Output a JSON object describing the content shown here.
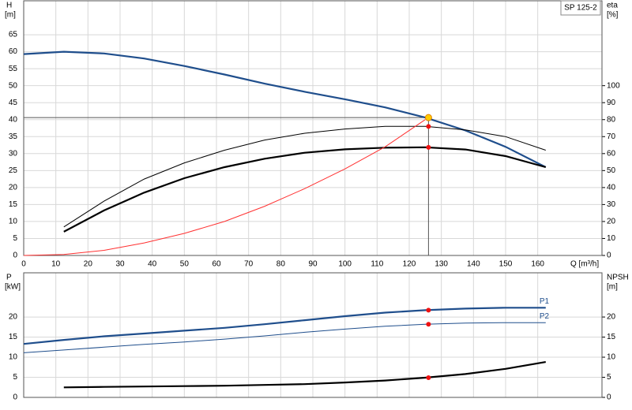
{
  "chart_data": [
    {
      "type": "line",
      "title": "SP 125-2",
      "x": [
        0,
        12.5,
        25,
        37.5,
        50,
        62.5,
        75,
        87.5,
        100,
        112.5,
        125,
        137.5,
        150,
        162.5
      ],
      "xlim": [
        0,
        180
      ],
      "xticks": [
        0,
        10,
        20,
        30,
        40,
        50,
        60,
        70,
        80,
        90,
        100,
        110,
        120,
        130,
        140,
        150,
        160
      ],
      "xlabel": "Q [m³/h]",
      "show_xtick_labels": true,
      "ylabel": "H",
      "yunit": "[m]",
      "ylim": [
        0,
        75
      ],
      "yticks": [
        0,
        5,
        10,
        15,
        20,
        25,
        30,
        35,
        40,
        45,
        50,
        55,
        60,
        65
      ],
      "y2label": "eta",
      "y2unit": "[%]",
      "y2lim": [
        0,
        150
      ],
      "y2ticks": [
        0,
        10,
        20,
        30,
        40,
        50,
        60,
        70,
        80,
        90,
        100
      ],
      "grid": true,
      "crosshair": true,
      "series": [
        {
          "color": "#1f4e8c",
          "line_style": "thick",
          "values": [
            59.3,
            60,
            59.5,
            58,
            55.8,
            53.3,
            50.6,
            48.2,
            46,
            43.6,
            40.6,
            36.8,
            32,
            26
          ]
        },
        {
          "color": "#000000",
          "line_style": "thin",
          "axis": "y2",
          "values": [
            null,
            16.8,
            32,
            45,
            54.5,
            62,
            68,
            72,
            74.5,
            76,
            76,
            74,
            70,
            62
          ]
        },
        {
          "color": "#000000",
          "line_style": "thick",
          "axis": "y2",
          "values": [
            null,
            14,
            26.5,
            37,
            45.5,
            52,
            57,
            60.5,
            62.5,
            63.5,
            63.7,
            62.4,
            58.5,
            52
          ]
        },
        {
          "color": "#ff3030",
          "line_style": "thin",
          "values": [
            0,
            0.3,
            1.5,
            3.7,
            6.5,
            10,
            14.5,
            19.7,
            25.5,
            32,
            40,
            null,
            null,
            null
          ]
        }
      ],
      "points": [
        {
          "x": 126,
          "y": 40.6,
          "color": "#ffcc00"
        },
        {
          "x": 126,
          "y": 76,
          "axis": "y2",
          "color": "#ee1111"
        },
        {
          "x": 126,
          "y": 63.7,
          "axis": "y2",
          "color": "#ee1111"
        }
      ]
    },
    {
      "type": "line",
      "x": [
        0,
        12.5,
        25,
        37.5,
        50,
        62.5,
        75,
        87.5,
        100,
        112.5,
        125,
        137.5,
        150,
        162.5
      ],
      "xlim": [
        0,
        180
      ],
      "xticks": [
        0,
        10,
        20,
        30,
        40,
        50,
        60,
        70,
        80,
        90,
        100,
        110,
        120,
        130,
        140,
        150,
        160
      ],
      "show_xtick_labels": false,
      "ylabel": "P",
      "yunit": "[kW]",
      "ylim": [
        0,
        31
      ],
      "yticks": [
        0,
        5,
        10,
        15,
        20
      ],
      "y2label": "NPSH",
      "y2unit": "[m]",
      "y2lim": [
        0,
        31
      ],
      "y2ticks": [
        0,
        5,
        10,
        15,
        20
      ],
      "grid": true,
      "crosshair": false,
      "series": [
        {
          "name": "P1",
          "color": "#1f4e8c",
          "line_style": "thick",
          "values": [
            13.3,
            14.3,
            15.2,
            15.9,
            16.6,
            17.3,
            18.2,
            19.2,
            20.2,
            21.1,
            21.7,
            22.1,
            22.3,
            22.3
          ]
        },
        {
          "name": "P2",
          "color": "#1f4e8c",
          "line_style": "thin",
          "values": [
            11.1,
            11.8,
            12.5,
            13.2,
            13.8,
            14.5,
            15.3,
            16.2,
            17,
            17.7,
            18.2,
            18.5,
            18.6,
            18.6
          ]
        },
        {
          "color": "#000000",
          "line_style": "thick",
          "axis": "y2",
          "values": [
            null,
            2.5,
            2.6,
            2.7,
            2.8,
            2.9,
            3.1,
            3.3,
            3.7,
            4.2,
            4.9,
            5.8,
            7.1,
            8.8
          ]
        }
      ],
      "points": [
        {
          "x": 126,
          "y": 21.7,
          "color": "#ee1111"
        },
        {
          "x": 126,
          "y": 18.2,
          "color": "#ee1111"
        },
        {
          "x": 126,
          "y": 4.9,
          "axis": "y2",
          "color": "#ee1111"
        }
      ]
    }
  ]
}
